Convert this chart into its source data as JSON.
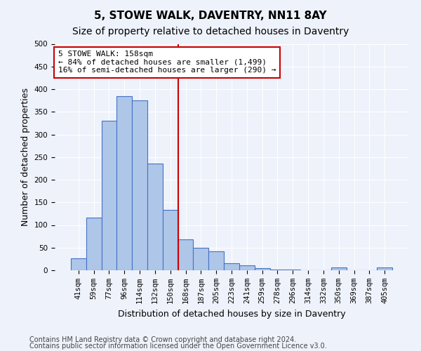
{
  "title": "5, STOWE WALK, DAVENTRY, NN11 8AY",
  "subtitle": "Size of property relative to detached houses in Daventry",
  "xlabel": "Distribution of detached houses by size in Daventry",
  "ylabel": "Number of detached properties",
  "bar_values": [
    27,
    116,
    330,
    385,
    375,
    235,
    133,
    68,
    50,
    42,
    15,
    11,
    5,
    2,
    1,
    0,
    0,
    6,
    0,
    0,
    6
  ],
  "x_tick_labels": [
    "41sqm",
    "59sqm",
    "77sqm",
    "96sqm",
    "114sqm",
    "132sqm",
    "150sqm",
    "168sqm",
    "187sqm",
    "205sqm",
    "223sqm",
    "241sqm",
    "259sqm",
    "278sqm",
    "296sqm",
    "314sqm",
    "332sqm",
    "350sqm",
    "369sqm",
    "387sqm",
    "405sqm"
  ],
  "bar_color": "#aec6e8",
  "bar_edge_color": "#4472c4",
  "vline_x": 6.5,
  "vline_color": "#cc0000",
  "annotation_text": "5 STOWE WALK: 158sqm\n← 84% of detached houses are smaller (1,499)\n16% of semi-detached houses are larger (290) →",
  "annotation_box_color": "#ffffff",
  "annotation_box_edge": "#cc0000",
  "ylim": [
    0,
    500
  ],
  "yticks": [
    0,
    50,
    100,
    150,
    200,
    250,
    300,
    350,
    400,
    450,
    500
  ],
  "footer_line1": "Contains HM Land Registry data © Crown copyright and database right 2024.",
  "footer_line2": "Contains public sector information licensed under the Open Government Licence v3.0.",
  "bg_color": "#eef2fb",
  "plot_bg_color": "#eef2fb",
  "title_fontsize": 11,
  "subtitle_fontsize": 10,
  "axis_label_fontsize": 9,
  "tick_fontsize": 7.5,
  "footer_fontsize": 7
}
